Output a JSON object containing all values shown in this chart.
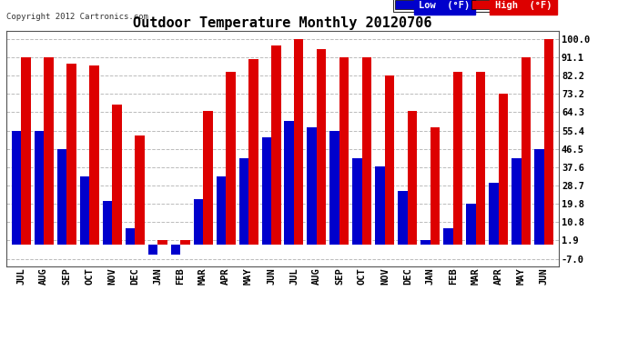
{
  "title": "Outdoor Temperature Monthly 20120706",
  "copyright": "Copyright 2012 Cartronics.com",
  "categories": [
    "JUL",
    "AUG",
    "SEP",
    "OCT",
    "NOV",
    "DEC",
    "JAN",
    "FEB",
    "MAR",
    "APR",
    "MAY",
    "JUN",
    "JUL",
    "AUG",
    "SEP",
    "OCT",
    "NOV",
    "DEC",
    "JAN",
    "FEB",
    "MAR",
    "APR",
    "MAY",
    "JUN"
  ],
  "high_vals": [
    91.1,
    91.1,
    88.0,
    87.0,
    68.0,
    53.0,
    1.9,
    1.9,
    65.0,
    84.0,
    90.0,
    97.0,
    100.0,
    95.0,
    91.1,
    91.1,
    82.2,
    65.0,
    57.0,
    84.0,
    84.0,
    73.2,
    91.1,
    100.0
  ],
  "low_vals": [
    55.4,
    55.4,
    46.5,
    33.0,
    21.0,
    8.0,
    -5.0,
    -5.0,
    22.0,
    33.0,
    42.0,
    52.0,
    60.0,
    57.0,
    55.4,
    42.0,
    38.0,
    26.0,
    1.9,
    8.0,
    19.8,
    30.0,
    42.0,
    46.5
  ],
  "bar_color_high": "#dd0000",
  "bar_color_low": "#0000cc",
  "background_color": "#ffffff",
  "grid_color": "#bbbbbb",
  "yticks": [
    -7.0,
    1.9,
    10.8,
    19.8,
    28.7,
    37.6,
    46.5,
    55.4,
    64.3,
    73.2,
    82.2,
    91.1,
    100.0
  ],
  "ylim": [
    -10.5,
    104
  ],
  "title_fontsize": 11,
  "tick_fontsize": 7.5,
  "copyright_fontsize": 6.5,
  "legend_low_label": "Low  (°F)",
  "legend_high_label": "High  (°F)",
  "bar_width": 0.42
}
